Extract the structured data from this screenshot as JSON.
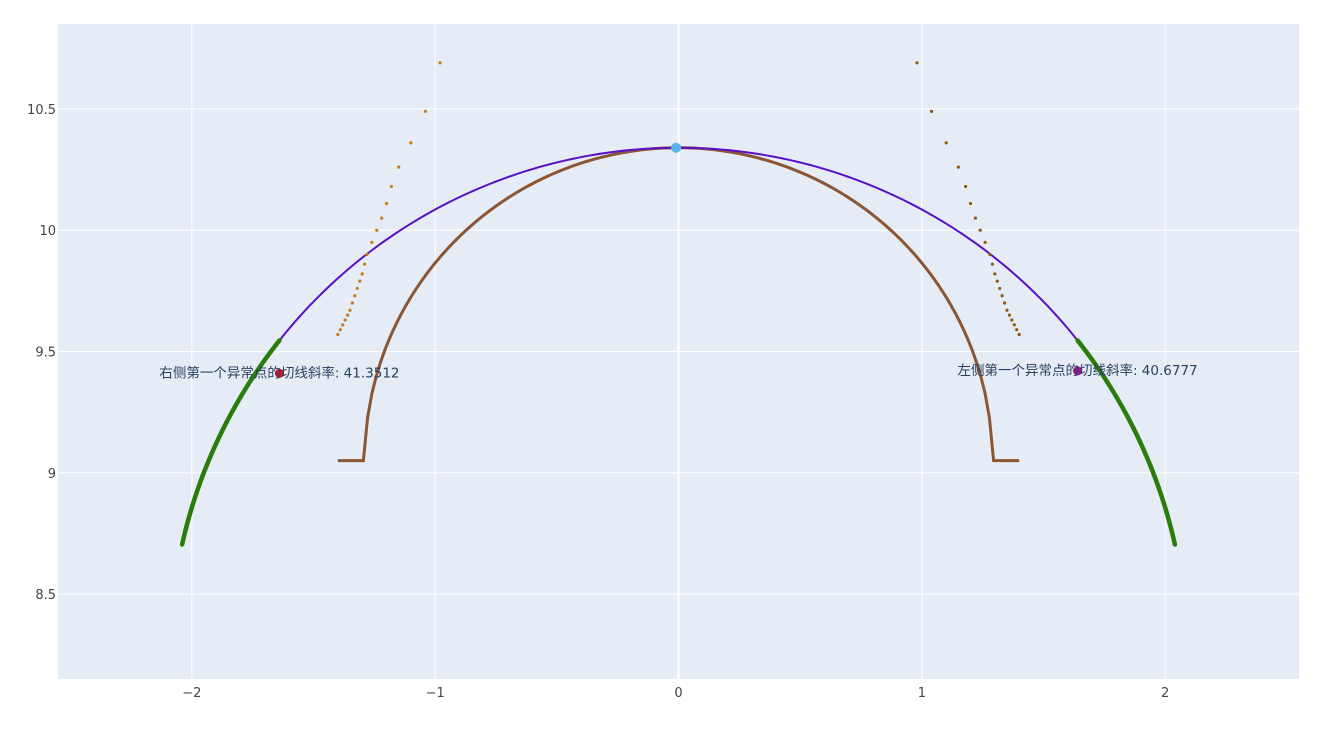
{
  "chart_data": {
    "type": "scatter",
    "title": "",
    "xlabel": "",
    "ylabel": "",
    "xlim": [
      -2.55,
      2.55
    ],
    "ylim": [
      8.15,
      10.85
    ],
    "grid": true,
    "legend": "none",
    "x_ticks": [
      -2,
      -1,
      0,
      1,
      2
    ],
    "x_tick_labels": [
      "−2",
      "−1",
      "0",
      "1",
      "2"
    ],
    "y_ticks": [
      8.5,
      9,
      9.5,
      10,
      10.5
    ],
    "y_tick_labels": [
      "8.5",
      "9",
      "9.5",
      "10",
      "10.5"
    ],
    "colors": {
      "plot_bg": "#e5ecf6",
      "grid": "#ffffff",
      "outer_arc": "#5a0fc8",
      "green_arc": "#2b7c0c",
      "inner_arc": "#8b5634",
      "left_outliers": "#c87d14",
      "right_outliers": "#8c5a0f",
      "top_point": "#5ab4f0",
      "left_marker": "#c81428",
      "right_marker": "#a0148c"
    },
    "curves": {
      "outer_arc": {
        "center": [
          0,
          8.25
        ],
        "radius": 2.09,
        "x_range": [
          -1.64,
          1.64
        ]
      },
      "green_left": {
        "center": [
          0,
          8.25
        ],
        "radius": 2.09,
        "x_range": [
          -2.04,
          -1.64
        ]
      },
      "green_right": {
        "center": [
          0,
          8.25
        ],
        "radius": 2.09,
        "x_range": [
          1.64,
          2.04
        ]
      },
      "inner_arc": {
        "center": [
          0,
          9.05
        ],
        "radius": 1.29,
        "x_range": [
          -1.4,
          1.4
        ]
      }
    },
    "left_outliers": [
      [
        -1.4,
        9.57
      ],
      [
        -1.39,
        9.59
      ],
      [
        -1.38,
        9.61
      ],
      [
        -1.37,
        9.63
      ],
      [
        -1.36,
        9.65
      ],
      [
        -1.35,
        9.67
      ],
      [
        -1.34,
        9.7
      ],
      [
        -1.33,
        9.73
      ],
      [
        -1.32,
        9.76
      ],
      [
        -1.31,
        9.79
      ],
      [
        -1.3,
        9.82
      ],
      [
        -1.29,
        9.86
      ],
      [
        -1.28,
        9.9
      ],
      [
        -1.26,
        9.95
      ],
      [
        -1.24,
        10.0
      ],
      [
        -1.22,
        10.05
      ],
      [
        -1.2,
        10.11
      ],
      [
        -1.18,
        10.18
      ],
      [
        -1.15,
        10.26
      ],
      [
        -1.1,
        10.36
      ],
      [
        -1.04,
        10.49
      ],
      [
        -0.98,
        10.69
      ]
    ],
    "right_outliers": [
      [
        1.4,
        9.57
      ],
      [
        1.39,
        9.59
      ],
      [
        1.38,
        9.61
      ],
      [
        1.37,
        9.63
      ],
      [
        1.36,
        9.65
      ],
      [
        1.35,
        9.67
      ],
      [
        1.34,
        9.7
      ],
      [
        1.33,
        9.73
      ],
      [
        1.32,
        9.76
      ],
      [
        1.31,
        9.79
      ],
      [
        1.3,
        9.82
      ],
      [
        1.29,
        9.86
      ],
      [
        1.28,
        9.9
      ],
      [
        1.26,
        9.95
      ],
      [
        1.24,
        10.0
      ],
      [
        1.22,
        10.05
      ],
      [
        1.2,
        10.11
      ],
      [
        1.18,
        10.18
      ],
      [
        1.15,
        10.26
      ],
      [
        1.1,
        10.36
      ],
      [
        1.04,
        10.49
      ],
      [
        0.98,
        10.69
      ]
    ],
    "top_point": [
      -0.01,
      10.34
    ],
    "left_marker": {
      "x": -1.64,
      "y": 9.41,
      "label": "右侧第一个异常点的切线斜率: 41.3512"
    },
    "right_marker": {
      "x": 1.64,
      "y": 9.42,
      "label": "左侧第一个异常点的切线斜率: 40.6777"
    }
  }
}
